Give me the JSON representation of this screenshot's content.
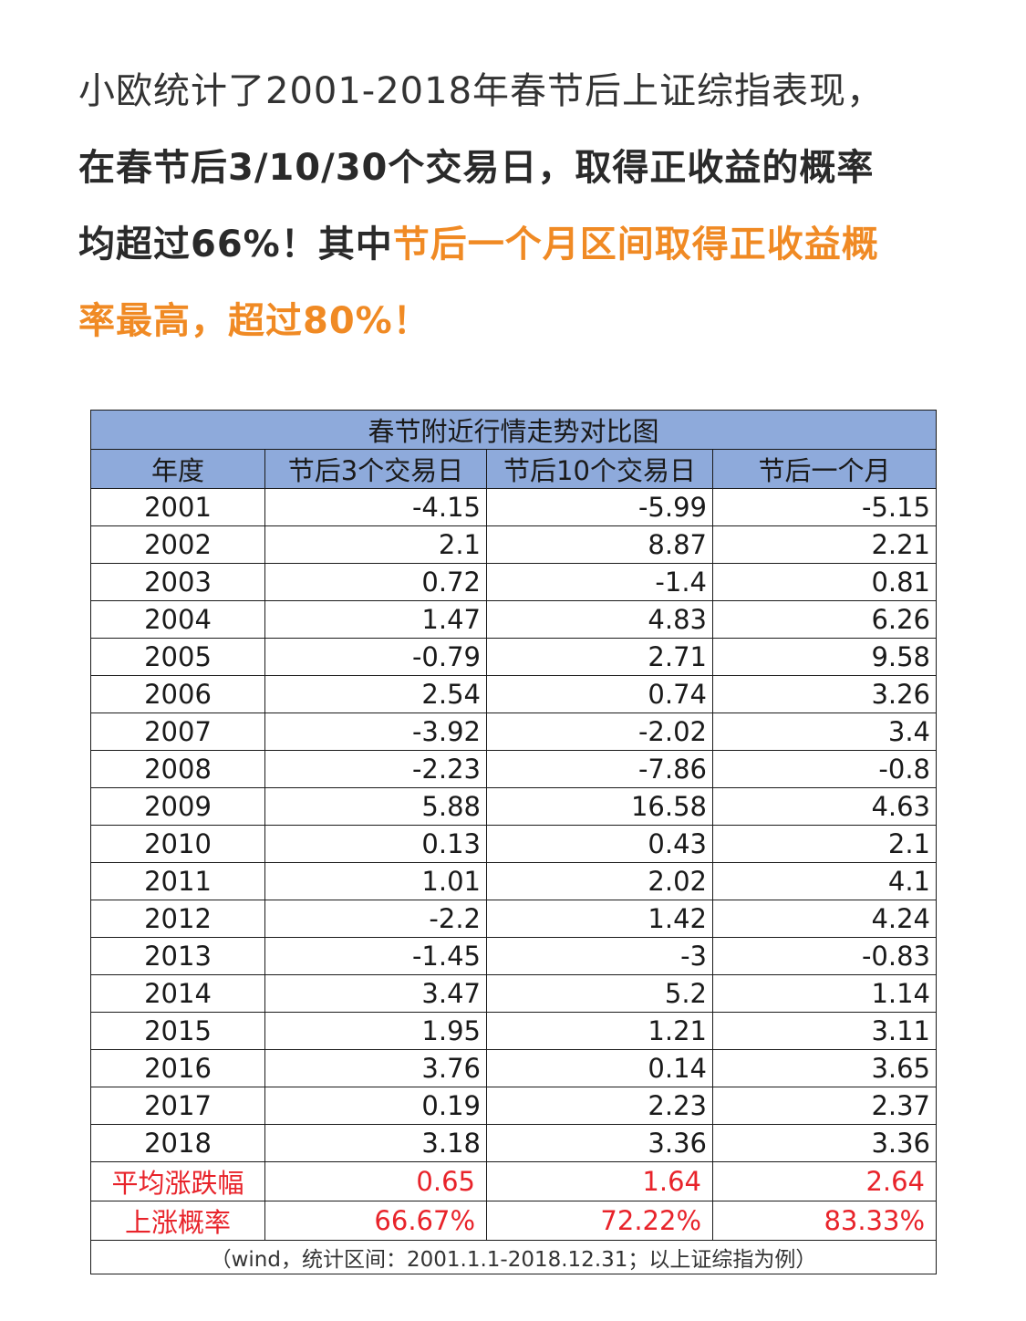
{
  "intro": {
    "line1": "小欧统计了2001-2018年春节后上证综指表现，",
    "line2": "在春节后3/10/30个交易日，取得正收益的概率",
    "line3_a": "均超过66%！其中",
    "line3_b": "节后一个月区间取得正收益概",
    "line4": "率最高，超过80%！"
  },
  "table": {
    "title": "春节附近行情走势对比图",
    "headers": [
      "年度",
      "节后3个交易日",
      "节后10个交易日",
      "节后一个月"
    ],
    "rows": [
      [
        "2001",
        "-4.15",
        "-5.99",
        "-5.15"
      ],
      [
        "2002",
        "2.1",
        "8.87",
        "2.21"
      ],
      [
        "2003",
        "0.72",
        "-1.4",
        "0.81"
      ],
      [
        "2004",
        "1.47",
        "4.83",
        "6.26"
      ],
      [
        "2005",
        "-0.79",
        "2.71",
        "9.58"
      ],
      [
        "2006",
        "2.54",
        "0.74",
        "3.26"
      ],
      [
        "2007",
        "-3.92",
        "-2.02",
        "3.4"
      ],
      [
        "2008",
        "-2.23",
        "-7.86",
        "-0.8"
      ],
      [
        "2009",
        "5.88",
        "16.58",
        "4.63"
      ],
      [
        "2010",
        "0.13",
        "0.43",
        "2.1"
      ],
      [
        "2011",
        "1.01",
        "2.02",
        "4.1"
      ],
      [
        "2012",
        "-2.2",
        "1.42",
        "4.24"
      ],
      [
        "2013",
        "-1.45",
        "-3",
        "-0.83"
      ],
      [
        "2014",
        "3.47",
        "5.2",
        "1.14"
      ],
      [
        "2015",
        "1.95",
        "1.21",
        "3.11"
      ],
      [
        "2016",
        "3.76",
        "0.14",
        "3.65"
      ],
      [
        "2017",
        "0.19",
        "2.23",
        "2.37"
      ],
      [
        "2018",
        "3.18",
        "3.36",
        "3.36"
      ]
    ],
    "summary": [
      [
        "平均涨跌幅",
        "0.65",
        "1.64",
        "2.64"
      ],
      [
        "上涨概率",
        "66.67%",
        "72.22%",
        "83.33%"
      ]
    ],
    "footnote": "（wind，统计区间：2001.1.1-2018.12.31；以上证综指为例）"
  },
  "colors": {
    "header_bg": "#8eaadb",
    "highlight_orange": "#f08a24",
    "summary_red": "#e8232a"
  }
}
